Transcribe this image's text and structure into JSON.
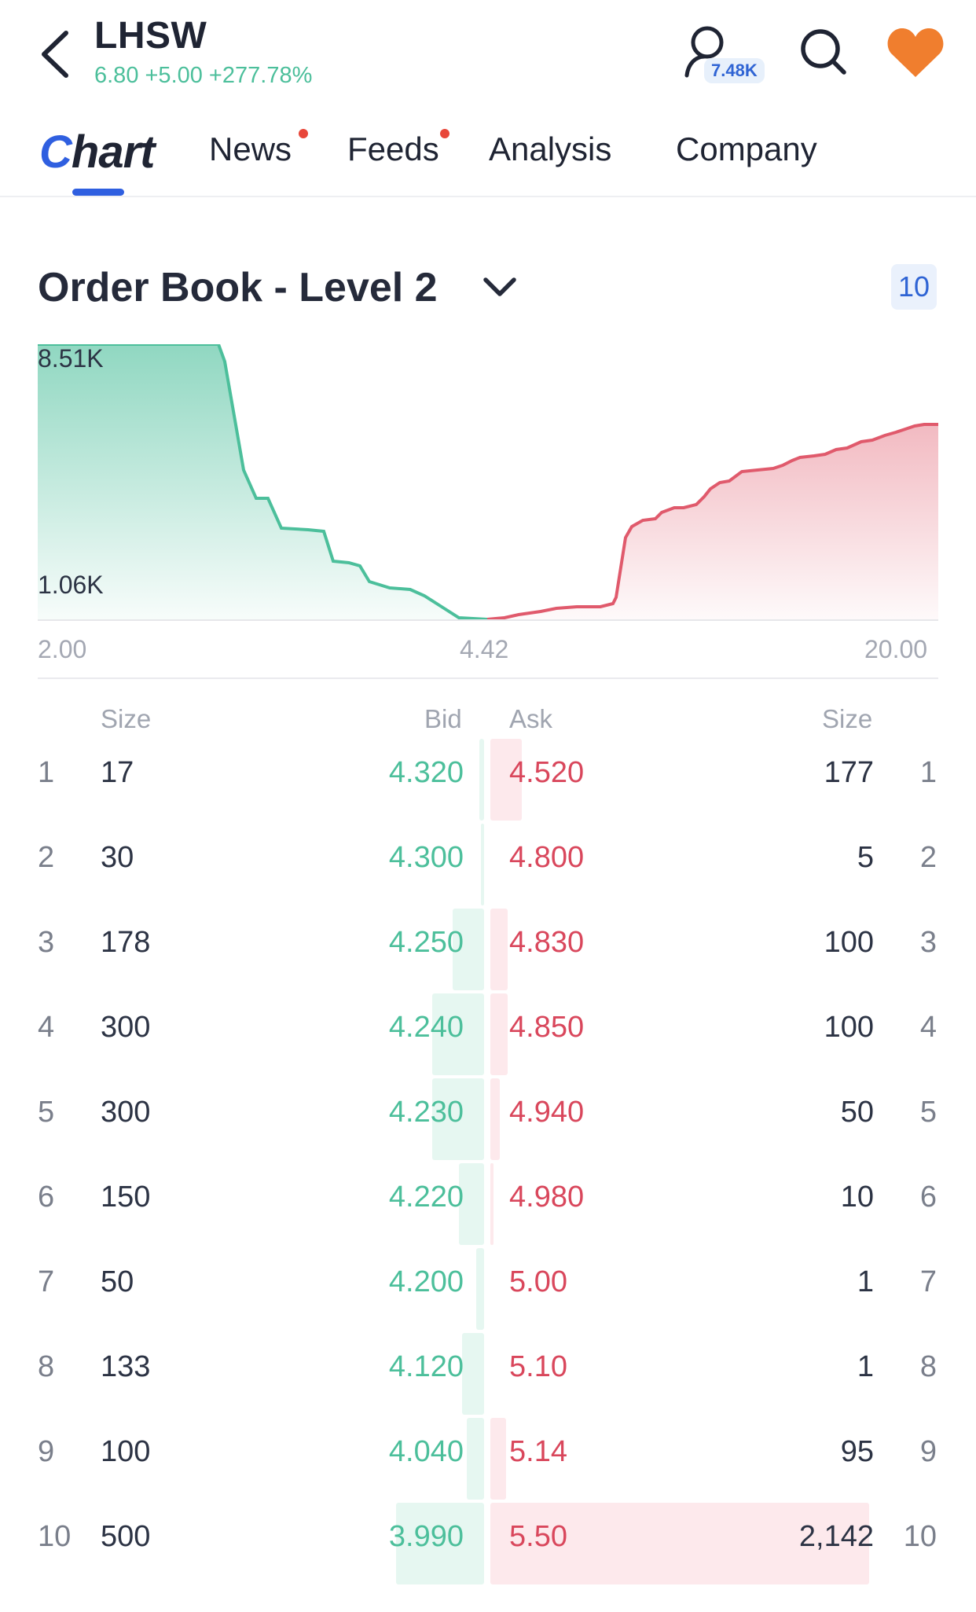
{
  "header": {
    "ticker": "LHSW",
    "quote": "6.80 +5.00 +277.78%",
    "follower_count": "7.48K",
    "colors": {
      "up": "#4cbf9b",
      "accent": "#2f5fe0",
      "favorite": "#f07e2e"
    }
  },
  "tabs": [
    {
      "label_lead": "C",
      "label_rest": "hart"
    },
    {
      "label": "News"
    },
    {
      "label": "Feeds"
    },
    {
      "label": "Analysis"
    },
    {
      "label": "Company"
    }
  ],
  "order_book": {
    "title": "Order Book - Level 2",
    "level_count": "10",
    "headers": {
      "bid_size": "Size",
      "bid": "Bid",
      "ask": "Ask",
      "ask_size": "Size"
    },
    "rows": [
      {
        "level": "1",
        "bid_size": "17",
        "bid": "4.320",
        "ask": "4.520",
        "ask_size": "177",
        "ask_level": "1"
      },
      {
        "level": "2",
        "bid_size": "30",
        "bid": "4.300",
        "ask": "4.800",
        "ask_size": "5",
        "ask_level": "2"
      },
      {
        "level": "3",
        "bid_size": "178",
        "bid": "4.250",
        "ask": "4.830",
        "ask_size": "100",
        "ask_level": "3"
      },
      {
        "level": "4",
        "bid_size": "300",
        "bid": "4.240",
        "ask": "4.850",
        "ask_size": "100",
        "ask_level": "4"
      },
      {
        "level": "5",
        "bid_size": "300",
        "bid": "4.230",
        "ask": "4.940",
        "ask_size": "50",
        "ask_level": "5"
      },
      {
        "level": "6",
        "bid_size": "150",
        "bid": "4.220",
        "ask": "4.980",
        "ask_size": "10",
        "ask_level": "6"
      },
      {
        "level": "7",
        "bid_size": "50",
        "bid": "4.200",
        "ask": "5.00",
        "ask_size": "1",
        "ask_level": "7"
      },
      {
        "level": "8",
        "bid_size": "133",
        "bid": "4.120",
        "ask": "5.10",
        "ask_size": "1",
        "ask_level": "8"
      },
      {
        "level": "9",
        "bid_size": "100",
        "bid": "4.040",
        "ask": "5.14",
        "ask_size": "95",
        "ask_level": "9"
      },
      {
        "level": "10",
        "bid_size": "500",
        "bid": "3.990",
        "ask": "5.50",
        "ask_size": "2,142",
        "ask_level": "10"
      }
    ]
  },
  "chart_data": {
    "type": "area",
    "y_labels": [
      "8.51K",
      "1.06K"
    ],
    "x_labels": [
      "2.00",
      "4.42",
      "20.00"
    ],
    "bid_color": "#4cbf9b",
    "ask_color": "#e05a6c"
  }
}
